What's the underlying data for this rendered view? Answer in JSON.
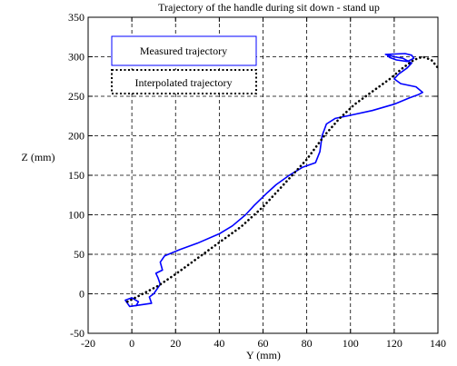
{
  "chart_data": {
    "type": "line",
    "title": "Trajectory of the handle during sit down - stand up",
    "xlabel": "Y (mm)",
    "ylabel": "Z (mm)",
    "xlim": [
      -20,
      140
    ],
    "ylim": [
      -50,
      350
    ],
    "xticks": [
      "-20",
      "0",
      "20",
      "40",
      "60",
      "80",
      "100",
      "120",
      "140"
    ],
    "yticks": [
      "-50",
      "0",
      "50",
      "100",
      "150",
      "200",
      "250",
      "300",
      "350"
    ],
    "grid": true,
    "legend_position": "top-left",
    "series": [
      {
        "name": "Measured trajectory",
        "style": "solid",
        "color": "#0000ff",
        "x": [
          2,
          3,
          0,
          -3,
          -1,
          4,
          9,
          8,
          10,
          13,
          12,
          11,
          14,
          13,
          15,
          22,
          30,
          40,
          46,
          52,
          56,
          59,
          62,
          66,
          72,
          78,
          84,
          86,
          87,
          89,
          93,
          100,
          110,
          120,
          127,
          131,
          133,
          130,
          123,
          120,
          122,
          126,
          128,
          124,
          120,
          116,
          125,
          128,
          129,
          126,
          121,
          118,
          117
        ],
        "y": [
          -15,
          -10,
          -5,
          -8,
          -16,
          -14,
          -12,
          -4,
          0,
          12,
          20,
          26,
          30,
          40,
          48,
          56,
          64,
          76,
          86,
          100,
          112,
          120,
          128,
          138,
          150,
          160,
          166,
          180,
          200,
          215,
          222,
          226,
          232,
          240,
          248,
          252,
          255,
          262,
          266,
          272,
          278,
          286,
          292,
          298,
          300,
          303,
          304,
          302,
          298,
          294,
          296,
          299,
          301
        ]
      },
      {
        "name": "Interpolated trajectory",
        "style": "dotted",
        "color": "#000000",
        "x": [
          -2,
          5,
          12,
          20,
          30,
          40,
          50,
          60,
          70,
          80,
          88,
          95,
          102,
          110,
          118,
          124,
          129,
          133,
          137,
          140
        ],
        "y": [
          -10,
          0,
          10,
          25,
          45,
          65,
          85,
          110,
          140,
          170,
          200,
          222,
          240,
          256,
          272,
          286,
          296,
          300,
          296,
          286
        ]
      }
    ]
  }
}
